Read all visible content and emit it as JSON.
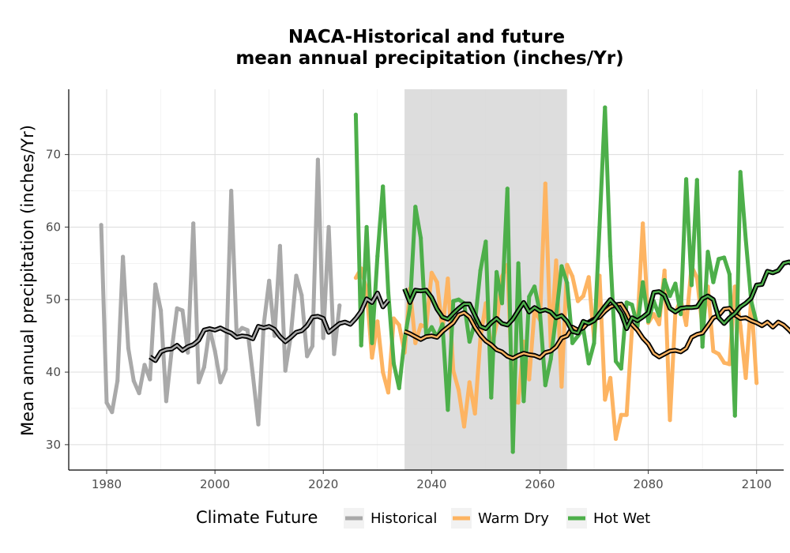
{
  "chart_data": {
    "type": "line",
    "title_line1": "NACA-Historical and future",
    "title_line2": "mean annual precipitation (inches/Yr)",
    "xlabel": "",
    "ylabel": "Mean annual precipitation (inches/Yr)",
    "xlim": [
      1973,
      2105
    ],
    "ylim": [
      26.5,
      79
    ],
    "x_ticks": [
      1980,
      2000,
      2020,
      2040,
      2060,
      2080,
      2100
    ],
    "y_ticks": [
      30,
      40,
      50,
      60,
      70
    ],
    "grid": true,
    "shaded_period": [
      2035,
      2065
    ],
    "legend": {
      "title": "Climate Future",
      "position": "bottom",
      "entries": [
        {
          "label": "Historical",
          "color": "#a9a9a9"
        },
        {
          "label": "Warm Dry",
          "color": "#fdb462"
        },
        {
          "label": "Hot Wet",
          "color": "#4daf4a"
        }
      ]
    },
    "series": [
      {
        "name": "Historical",
        "color": "#a9a9a9",
        "x_start": 1979,
        "values": [
          60.3,
          35.8,
          34.5,
          38.8,
          55.9,
          43.3,
          38.8,
          37.1,
          41.0,
          39.0,
          52.1,
          48.5,
          36.0,
          43.0,
          48.8,
          48.5,
          42.7,
          60.5,
          38.6,
          40.7,
          46.0,
          42.9,
          38.6,
          40.4,
          65.0,
          45.3,
          46.1,
          45.8,
          39.6,
          32.8,
          46.5,
          52.6,
          45.0,
          57.4,
          40.2,
          45.0,
          53.3,
          50.6,
          42.2,
          43.6,
          69.3,
          44.7,
          60.0,
          42.5,
          49.2
        ]
      },
      {
        "name": "Warm Dry",
        "color": "#fdb462",
        "x_start": 2026,
        "values": [
          53.0,
          54.3,
          51.3,
          42.0,
          47.0,
          40.0,
          37.2,
          47.4,
          46.5,
          42.7,
          51.5,
          44.0,
          46.5,
          46.2,
          53.7,
          52.4,
          45.8,
          52.9,
          40.2,
          37.5,
          32.5,
          38.6,
          34.3,
          44.6,
          49.5,
          43.1,
          46.6,
          53.2,
          54.8,
          36.0,
          35.8,
          44.2,
          39.0,
          48.5,
          47.2,
          66.0,
          43.5,
          55.4,
          38.0,
          54.8,
          53.2,
          49.8,
          50.5,
          53.1,
          44.5,
          53.3,
          36.2,
          39.2,
          30.8,
          34.1,
          34.1,
          46.0,
          46.5,
          60.5,
          46.8,
          48.0,
          46.6,
          54.0,
          33.4,
          48.2,
          50.0,
          46.5,
          54.6,
          53.0,
          46.1,
          51.8,
          42.9,
          42.5,
          41.3,
          41.1,
          51.8,
          46.4,
          39.2,
          50.2,
          38.5
        ]
      },
      {
        "name": "Hot Wet",
        "color": "#4daf4a",
        "x_start": 2026,
        "values": [
          75.5,
          43.7,
          60.0,
          44.0,
          56.0,
          65.6,
          51.0,
          41.2,
          37.8,
          44.5,
          48.9,
          62.8,
          58.5,
          45.1,
          46.2,
          44.8,
          46.6,
          34.8,
          49.8,
          50.0,
          49.5,
          44.2,
          46.8,
          54.0,
          58.0,
          36.5,
          53.8,
          49.5,
          65.3,
          29.0,
          55.0,
          36.0,
          50.4,
          51.8,
          48.2,
          38.2,
          41.8,
          47.8,
          54.6,
          52.3,
          44.0,
          45.0,
          46.0,
          41.2,
          44.0,
          60.0,
          76.5,
          56.0,
          41.5,
          40.5,
          49.6,
          49.3,
          46.3,
          52.4,
          47.0,
          49.8,
          47.8,
          52.7,
          50.5,
          52.2,
          48.0,
          66.6,
          52.0,
          66.5,
          43.5,
          56.6,
          52.4,
          55.6,
          55.8,
          53.5,
          34.0,
          67.6,
          58.3,
          49.8,
          46.8
        ]
      }
    ],
    "smooth_series": [
      {
        "name": "Historical",
        "x_start": 1988,
        "values": [
          42.1,
          41.6,
          42.8,
          43.1,
          43.2,
          43.7,
          43.0,
          43.5,
          43.8,
          44.4,
          45.8,
          46.0,
          45.8,
          46.1,
          45.7,
          45.4,
          44.8,
          45.0,
          44.9,
          44.6,
          46.3,
          46.1,
          46.3,
          45.9,
          44.9,
          44.2,
          44.8,
          45.5,
          45.7,
          46.4,
          47.6,
          47.7,
          47.4,
          45.5,
          46.1,
          46.7,
          46.9,
          46.6,
          47.4,
          48.4,
          50.1,
          49.6,
          50.9,
          49.0,
          49.9
        ]
      },
      {
        "name": "Warm Dry",
        "x_start": 2035,
        "values": [
          45.6,
          45.3,
          44.9,
          44.5,
          44.9,
          45.0,
          44.8,
          45.6,
          46.2,
          46.8,
          47.9,
          48.2,
          47.6,
          46.2,
          45.1,
          44.3,
          43.8,
          43.1,
          42.8,
          42.2,
          41.9,
          42.3,
          42.6,
          42.4,
          42.3,
          42.0,
          42.7,
          42.9,
          43.5,
          44.7,
          45.0,
          46.2,
          45.8,
          46.1,
          46.9,
          47.3,
          47.6,
          48.4,
          49.0,
          49.3,
          49.4,
          48.2,
          46.6,
          45.8,
          44.7,
          43.9,
          42.6,
          42.1,
          42.5,
          42.9,
          43.0,
          42.8,
          43.3,
          44.8,
          45.2,
          45.4,
          46.4,
          47.5,
          47.8,
          48.7,
          48.8,
          47.9,
          47.4,
          47.5,
          47.1,
          46.8,
          46.4,
          46.9,
          46.2,
          46.9,
          46.5,
          45.8,
          45.0,
          44.8,
          44.5,
          44.7,
          44.2,
          44.8
        ]
      },
      {
        "name": "Hot Wet",
        "x_start": 2035,
        "values": [
          51.5,
          49.6,
          51.3,
          51.2,
          51.3,
          50.3,
          48.7,
          47.6,
          47.3,
          48.1,
          48.8,
          49.4,
          49.4,
          47.8,
          46.3,
          46.0,
          46.8,
          47.4,
          46.7,
          46.5,
          47.3,
          48.5,
          49.6,
          48.3,
          48.9,
          48.4,
          48.6,
          48.3,
          47.5,
          47.8,
          47.0,
          45.6,
          45.4,
          47.0,
          46.7,
          47.1,
          48.1,
          49.1,
          50.0,
          49.2,
          48.1,
          46.0,
          47.5,
          47.1,
          47.6,
          48.2,
          51.0,
          51.1,
          50.6,
          48.8,
          48.3,
          48.8,
          48.9,
          48.9,
          49.0,
          50.1,
          50.5,
          50.0,
          47.5,
          46.7,
          47.5,
          48.1,
          49.0,
          49.5,
          50.2,
          52.0,
          52.1,
          53.9,
          53.7,
          54.0,
          55.0,
          55.2,
          54.7,
          52.8,
          54.5,
          54.1,
          53.2
        ]
      }
    ]
  }
}
